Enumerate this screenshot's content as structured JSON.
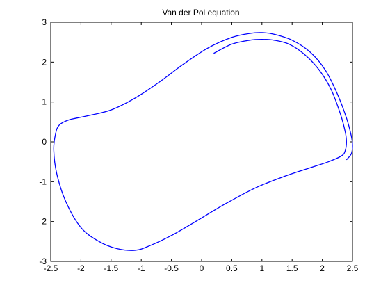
{
  "chart_data": {
    "type": "line",
    "title": "Van der Pol equation",
    "xlabel": "",
    "ylabel": "",
    "xlim": [
      -2.5,
      2.5
    ],
    "ylim": [
      -3,
      3
    ],
    "xticks": [
      "-2.5",
      "-2",
      "-1.5",
      "-1",
      "-0.5",
      "0",
      "0.5",
      "1",
      "1.5",
      "2",
      "2.5"
    ],
    "yticks": [
      "-3",
      "-2",
      "-1",
      "0",
      "1",
      "2",
      "3"
    ],
    "grid": false,
    "legend": "none",
    "series": [
      {
        "color": "#0000ff",
        "x": [
          0.2,
          0.5,
          0.8,
          1.0,
          1.2,
          1.45,
          1.7,
          1.95,
          2.15,
          2.3,
          2.38,
          2.4,
          2.38,
          2.32,
          2.1,
          1.8,
          1.4,
          0.9,
          0.4,
          -0.1,
          -0.5,
          -0.85,
          -1.1,
          -1.4,
          -1.7,
          -2.0,
          -2.25,
          -2.4,
          -2.45,
          -2.42,
          -2.36,
          -2.2,
          -1.9,
          -1.5,
          -1.1,
          -0.7,
          -0.3,
          0.1,
          0.5,
          0.8,
          1.0,
          1.2,
          1.5,
          1.8,
          2.05,
          2.25,
          2.4,
          2.48,
          2.5,
          2.48,
          2.4
        ],
        "y": [
          2.22,
          2.45,
          2.55,
          2.57,
          2.55,
          2.45,
          2.2,
          1.8,
          1.3,
          0.7,
          0.25,
          0.0,
          -0.22,
          -0.35,
          -0.5,
          -0.65,
          -0.85,
          -1.15,
          -1.55,
          -2.0,
          -2.35,
          -2.6,
          -2.72,
          -2.68,
          -2.5,
          -2.15,
          -1.5,
          -0.8,
          -0.2,
          0.2,
          0.42,
          0.55,
          0.65,
          0.8,
          1.1,
          1.5,
          1.95,
          2.35,
          2.62,
          2.72,
          2.74,
          2.7,
          2.55,
          2.25,
          1.8,
          1.2,
          0.6,
          0.15,
          -0.1,
          -0.3,
          -0.45
        ]
      }
    ]
  }
}
